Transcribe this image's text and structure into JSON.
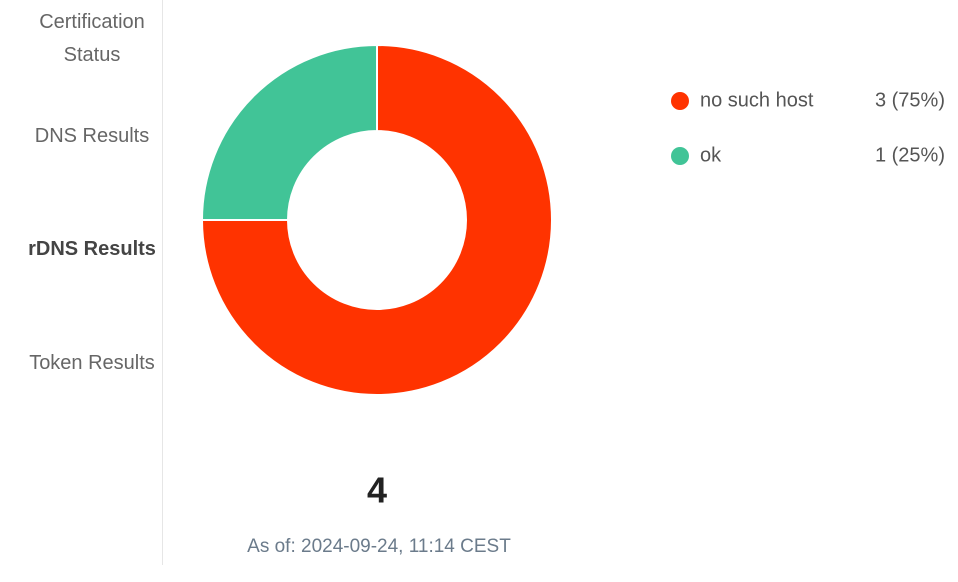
{
  "sidebar": {
    "items": [
      "Certification Status",
      "DNS Results",
      "rDNS Results",
      "Token Results"
    ],
    "active": 2
  },
  "chart_data": {
    "type": "donut",
    "categories": [
      "no such host",
      "ok"
    ],
    "values": [
      3,
      1
    ],
    "value_labels": [
      "3 (75%)",
      "1 (25%)"
    ],
    "colors": [
      "#ff3300",
      "#41c497"
    ]
  },
  "total": 4,
  "timestamp": "As of: 2024-09-24, 11:14 CEST"
}
